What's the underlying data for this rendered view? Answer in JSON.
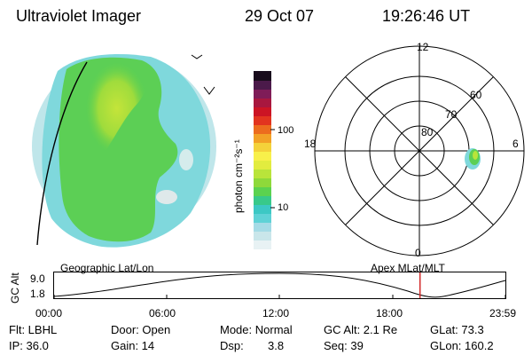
{
  "header": {
    "title": "Ultraviolet Imager",
    "date": "29 Oct 07",
    "time": "19:26:46 UT"
  },
  "colorbar": {
    "unit_label": "photon cm⁻²s⁻¹",
    "tick_100": "100",
    "tick_10": "10",
    "colors": [
      "#e8f2f4",
      "#c9e6ea",
      "#a5dbe6",
      "#5fd2d6",
      "#3cc8c4",
      "#38c98a",
      "#5bd24f",
      "#8ed93a",
      "#b9e43a",
      "#e2ec3f",
      "#f8f04a",
      "#f4d23a",
      "#f2a126",
      "#ec6c1e",
      "#e2341f",
      "#cc1424",
      "#a8173f",
      "#7f1c58",
      "#4b1a4a",
      "#180c1c"
    ]
  },
  "polar_plot": {
    "mlt_labels": {
      "top": "12",
      "left": "18",
      "right": "6",
      "bottom": "0"
    },
    "lat_labels": [
      "80",
      "70",
      "60"
    ]
  },
  "timeline": {
    "left_title": "Geographic Lat/Lon",
    "right_title": "Apex  MLat/MLT",
    "axis_label": "GC Alt",
    "y_max": "9.0",
    "y_min": "1.8",
    "time_ticks": [
      "00:00",
      "06:00",
      "12:00",
      "18:00",
      "23:59"
    ],
    "marker_time": "19:26:46"
  },
  "footer": {
    "flt": "Flt: LBHL",
    "ip": "IP: 36.0",
    "door": "Door: Open",
    "gain": "Gain: 14",
    "mode": "Mode: Normal",
    "dsp_label": "Dsp:",
    "dsp_value": "3.8",
    "gc_alt": "GC Alt: 2.1 Re",
    "seq": "Seq: 39",
    "glat": "GLat:  73.3",
    "glon": "GLon: 160.2"
  }
}
